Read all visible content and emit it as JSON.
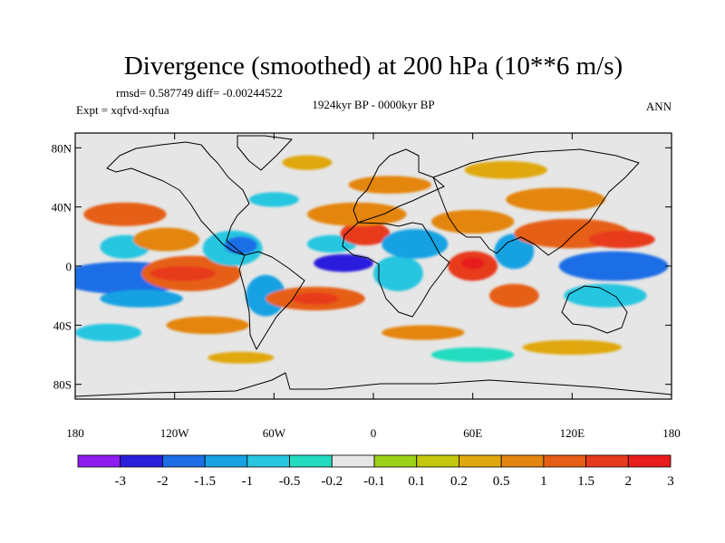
{
  "chart_data": {
    "type": "heatmap",
    "title": "Divergence (smoothed) at 200 hPa (10**6 m/s)",
    "stats_label": "rmsd= 0.587749 diff= -0.00244522",
    "experiment_label": "Expt = xqfvd-xqfua",
    "period_label": "1924kyr BP - 0000kyr BP",
    "season_label": "ANN",
    "x_axis": {
      "range": [
        -180,
        180
      ],
      "ticks": [
        {
          "value": -180,
          "label": "180"
        },
        {
          "value": -120,
          "label": "120W"
        },
        {
          "value": -60,
          "label": "60W"
        },
        {
          "value": 0,
          "label": "0"
        },
        {
          "value": 60,
          "label": "60E"
        },
        {
          "value": 120,
          "label": "120E"
        },
        {
          "value": 180,
          "label": "180"
        }
      ]
    },
    "y_axis": {
      "range": [
        -90,
        90
      ],
      "ticks": [
        {
          "value": 80,
          "label": "80N"
        },
        {
          "value": 40,
          "label": "40N"
        },
        {
          "value": 0,
          "label": "0"
        },
        {
          "value": -40,
          "label": "40S"
        },
        {
          "value": -80,
          "label": "80S"
        }
      ]
    },
    "colorbar": {
      "colors": [
        "#8d1cf0",
        "#2c1edd",
        "#1b6ee6",
        "#16a2e2",
        "#28c6e0",
        "#22dcc0",
        "#e6e6e6",
        "#9ad216",
        "#c3c80d",
        "#e0a80d",
        "#e48510",
        "#e65e16",
        "#e83a1e",
        "#e81c1c"
      ],
      "labels": [
        "-3",
        "-2",
        "-1.5",
        "-1",
        "-0.5",
        "-0.2",
        "-0.1",
        "0.1",
        "0.2",
        "0.5",
        "1",
        "1.5",
        "2",
        "3"
      ]
    },
    "field_blobs": [
      {
        "lon": -150,
        "lat": -8,
        "rx": 30,
        "ry": 7,
        "value": -3
      },
      {
        "lon": -150,
        "lat": -8,
        "rx": 40,
        "ry": 11,
        "value": -1.5
      },
      {
        "lon": -140,
        "lat": -22,
        "rx": 25,
        "ry": 6,
        "value": -1
      },
      {
        "lon": -110,
        "lat": -5,
        "rx": 30,
        "ry": 12,
        "value": 1
      },
      {
        "lon": -115,
        "lat": -5,
        "rx": 20,
        "ry": 5,
        "value": 1.5
      },
      {
        "lon": -150,
        "lat": 13,
        "rx": 15,
        "ry": 8,
        "value": -0.5
      },
      {
        "lon": -125,
        "lat": 18,
        "rx": 20,
        "ry": 8,
        "value": 0.5
      },
      {
        "lon": -85,
        "lat": 12,
        "rx": 18,
        "ry": 12,
        "value": -0.5
      },
      {
        "lon": -80,
        "lat": 14,
        "rx": 10,
        "ry": 6,
        "value": -1.5
      },
      {
        "lon": -65,
        "lat": -20,
        "rx": 12,
        "ry": 14,
        "value": -1
      },
      {
        "lon": -35,
        "lat": -22,
        "rx": 30,
        "ry": 8,
        "value": 1
      },
      {
        "lon": -35,
        "lat": -22,
        "rx": 14,
        "ry": 4,
        "value": 1.5
      },
      {
        "lon": -18,
        "lat": 2,
        "rx": 18,
        "ry": 6,
        "value": -2
      },
      {
        "lon": -25,
        "lat": 15,
        "rx": 15,
        "ry": 6,
        "value": -0.5
      },
      {
        "lon": -5,
        "lat": 22,
        "rx": 15,
        "ry": 8,
        "value": 1.5
      },
      {
        "lon": -10,
        "lat": 35,
        "rx": 30,
        "ry": 8,
        "value": 0.5
      },
      {
        "lon": -60,
        "lat": 45,
        "rx": 15,
        "ry": 5,
        "value": -0.5
      },
      {
        "lon": 15,
        "lat": -5,
        "rx": 15,
        "ry": 12,
        "value": -0.5
      },
      {
        "lon": 10,
        "lat": 55,
        "rx": 25,
        "ry": 6,
        "value": 0.5
      },
      {
        "lon": 25,
        "lat": 15,
        "rx": 20,
        "ry": 10,
        "value": -1
      },
      {
        "lon": 60,
        "lat": 0,
        "rx": 15,
        "ry": 10,
        "value": 1.5
      },
      {
        "lon": 60,
        "lat": 2,
        "rx": 7,
        "ry": 4,
        "value": 2
      },
      {
        "lon": 60,
        "lat": 30,
        "rx": 25,
        "ry": 8,
        "value": 0.5
      },
      {
        "lon": 85,
        "lat": 10,
        "rx": 12,
        "ry": 12,
        "value": -1
      },
      {
        "lon": 85,
        "lat": -20,
        "rx": 15,
        "ry": 8,
        "value": 1
      },
      {
        "lon": 145,
        "lat": 0,
        "rx": 25,
        "ry": 6,
        "value": -3
      },
      {
        "lon": 145,
        "lat": 0,
        "rx": 33,
        "ry": 10,
        "value": -1.5
      },
      {
        "lon": 120,
        "lat": 22,
        "rx": 35,
        "ry": 10,
        "value": 1
      },
      {
        "lon": 150,
        "lat": 18,
        "rx": 20,
        "ry": 6,
        "value": 1.5
      },
      {
        "lon": 140,
        "lat": -20,
        "rx": 25,
        "ry": 8,
        "value": -0.5
      },
      {
        "lon": 110,
        "lat": 45,
        "rx": 30,
        "ry": 8,
        "value": 0.5
      },
      {
        "lon": -150,
        "lat": 35,
        "rx": 25,
        "ry": 8,
        "value": 1
      },
      {
        "lon": -160,
        "lat": -45,
        "rx": 20,
        "ry": 6,
        "value": -0.5
      },
      {
        "lon": -100,
        "lat": -40,
        "rx": 25,
        "ry": 6,
        "value": 0.5
      },
      {
        "lon": 30,
        "lat": -45,
        "rx": 25,
        "ry": 5,
        "value": 0.5
      },
      {
        "lon": 120,
        "lat": -55,
        "rx": 30,
        "ry": 5,
        "value": 0.2
      },
      {
        "lon": 60,
        "lat": -60,
        "rx": 25,
        "ry": 5,
        "value": -0.2
      },
      {
        "lon": -80,
        "lat": -62,
        "rx": 20,
        "ry": 4,
        "value": 0.2
      },
      {
        "lon": 80,
        "lat": 65,
        "rx": 25,
        "ry": 6,
        "value": 0.2
      },
      {
        "lon": -40,
        "lat": 70,
        "rx": 15,
        "ry": 5,
        "value": 0.2
      }
    ]
  }
}
